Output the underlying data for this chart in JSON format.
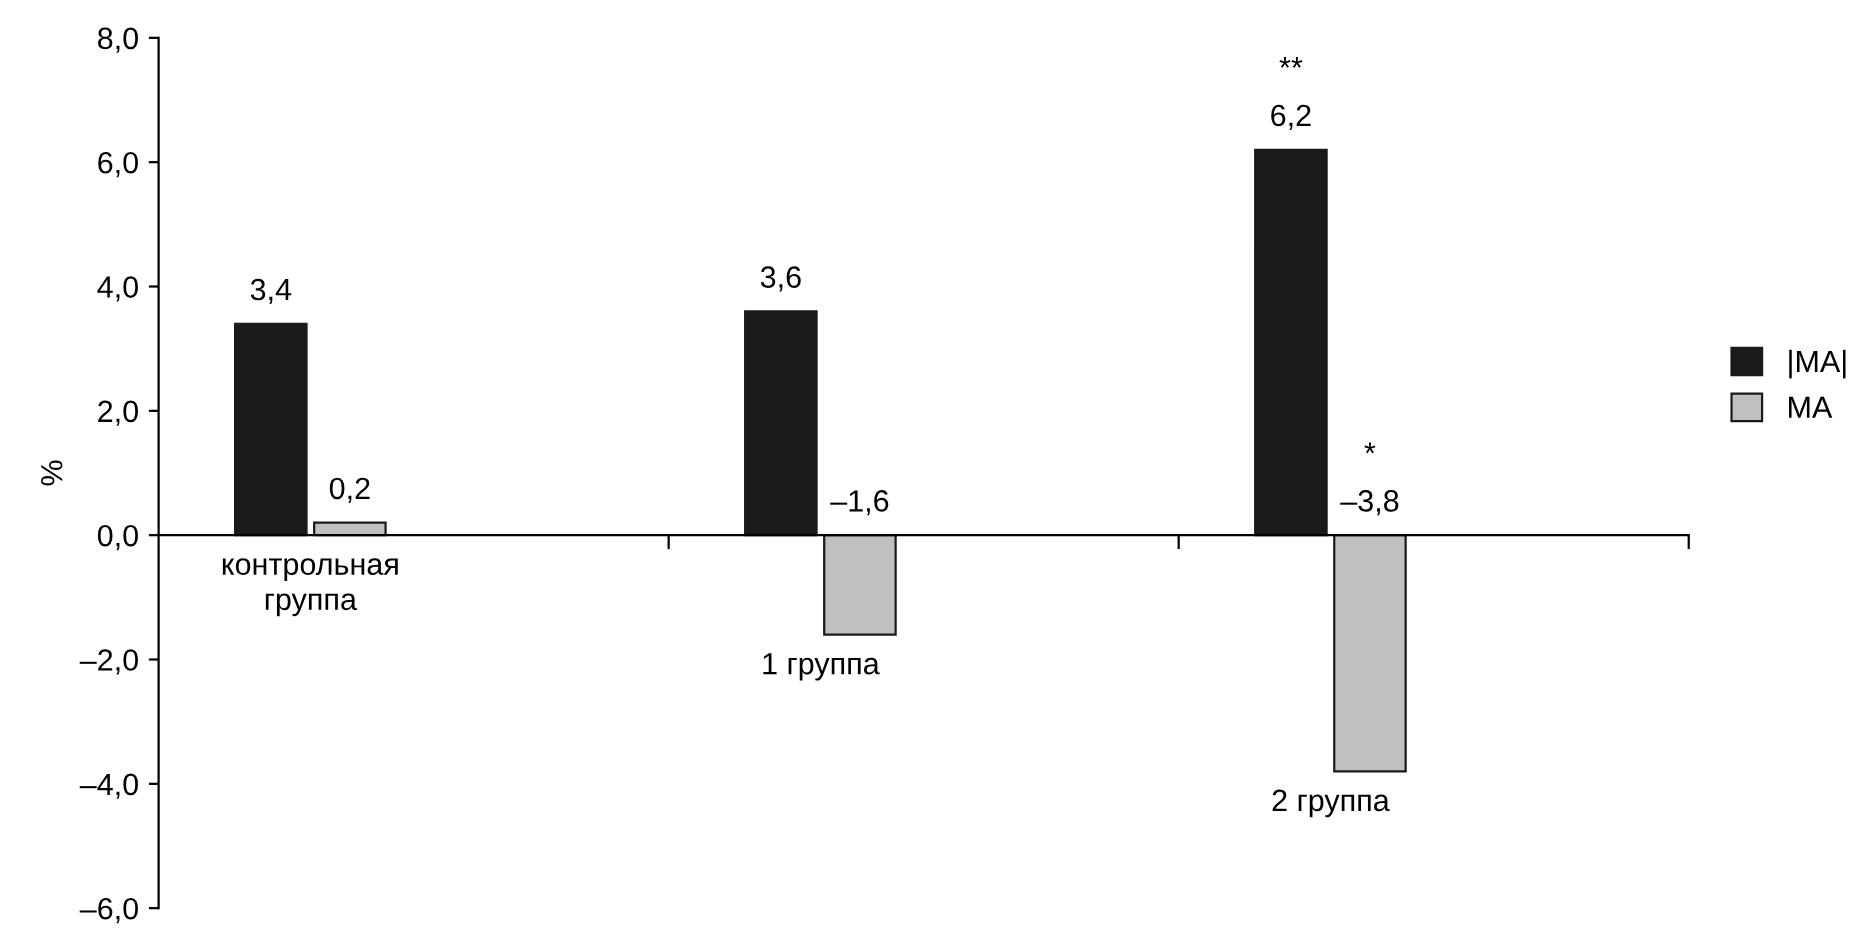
{
  "chart_data": {
    "type": "bar",
    "ylabel": "%",
    "categories": [
      "контрольная\nгруппа",
      "1 группа",
      "2 группа"
    ],
    "series": [
      {
        "name": "|MA|",
        "color": "#1a1a1a",
        "values": [
          3.4,
          3.6,
          6.2
        ],
        "value_labels": [
          "3,4",
          "3,6",
          "6,2"
        ]
      },
      {
        "name": "MA",
        "color": "#c0c0c0",
        "values": [
          0.2,
          -1.6,
          -3.8
        ],
        "value_labels": [
          "0,2",
          "–1,6",
          "–3,8"
        ]
      }
    ],
    "ylim": [
      -6,
      8
    ],
    "yticks": [
      {
        "value": -6,
        "label": "–6,0"
      },
      {
        "value": -4,
        "label": "–4,0"
      },
      {
        "value": -2,
        "label": "–2,0"
      },
      {
        "value": 0,
        "label": "0,0"
      },
      {
        "value": 2,
        "label": "2,0"
      },
      {
        "value": 4,
        "label": "4,0"
      },
      {
        "value": 6,
        "label": "6,0"
      },
      {
        "value": 8,
        "label": "8,0"
      }
    ],
    "annotations": [
      "**",
      "*"
    ],
    "legend": "right"
  }
}
